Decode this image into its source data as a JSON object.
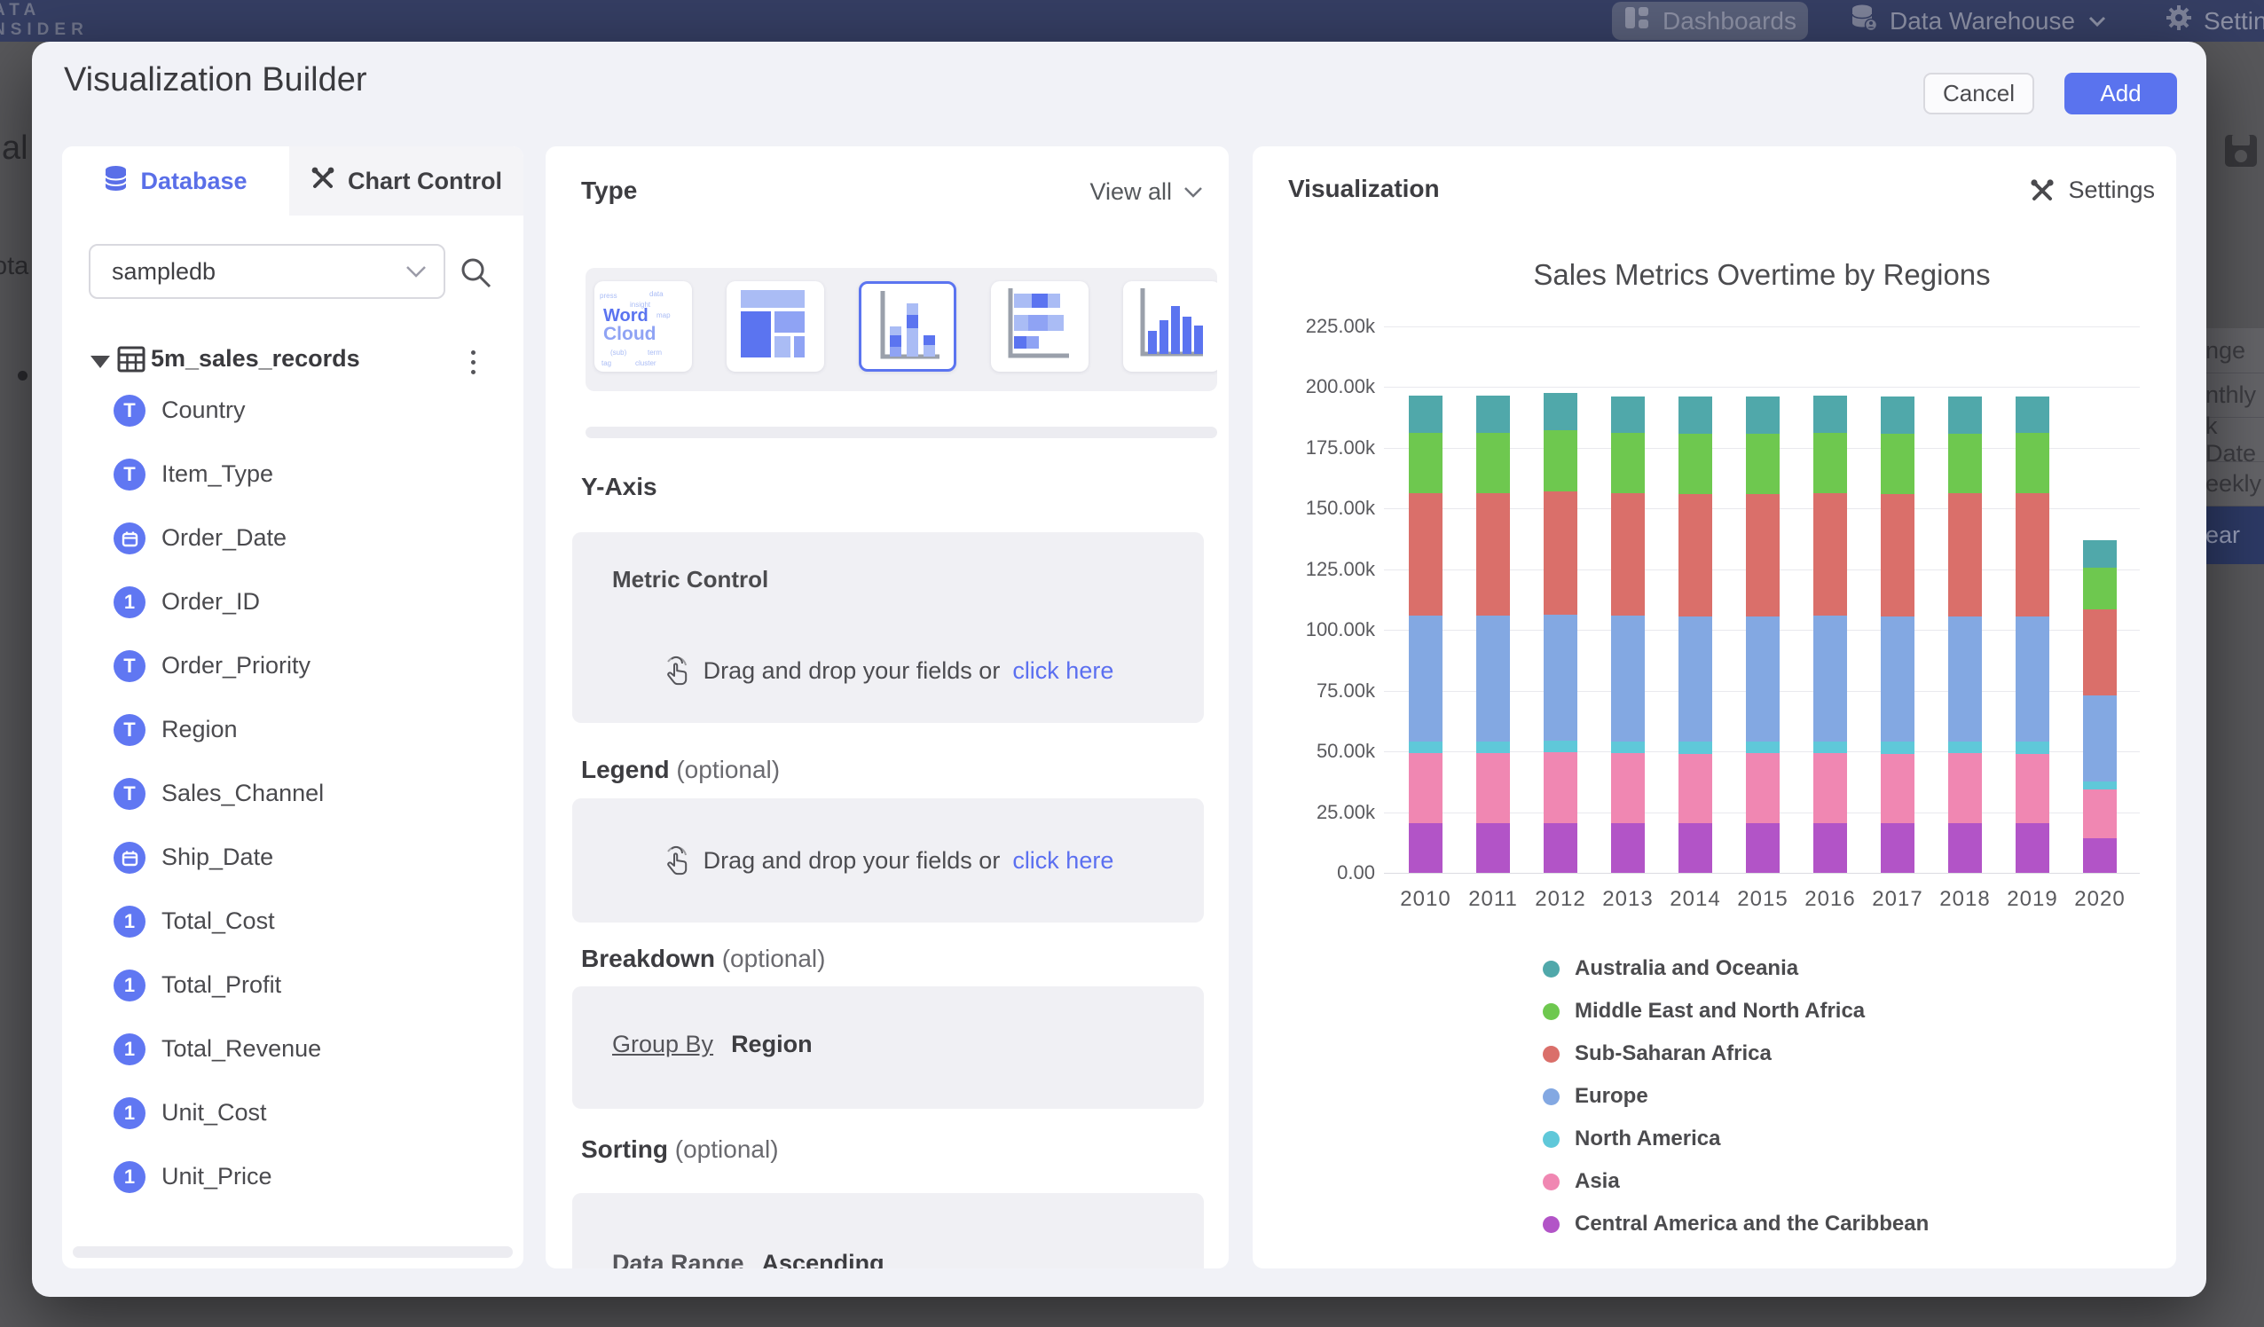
{
  "nav": {
    "logo_line1": "ATA",
    "logo_line2": "NSIDER",
    "dashboards": "Dashboards",
    "data_warehouse": "Data Warehouse",
    "settings": "Settings"
  },
  "background": {
    "left_fragment_1": "al",
    "left_fragment_2": "ota",
    "right_list": {
      "items": [
        "nge",
        "nthly",
        "k Date",
        "eekly",
        "ear"
      ],
      "selected_index": 4
    }
  },
  "modal": {
    "title": "Visualization Builder",
    "cancel": "Cancel",
    "add": "Add"
  },
  "left_panel": {
    "tabs": {
      "database": "Database",
      "chart_control": "Chart Control"
    },
    "database_select": {
      "value": "sampledb"
    },
    "table": {
      "name": "5m_sales_records",
      "fields": [
        {
          "name": "Country",
          "type": "text"
        },
        {
          "name": "Item_Type",
          "type": "text"
        },
        {
          "name": "Order_Date",
          "type": "date"
        },
        {
          "name": "Order_ID",
          "type": "number"
        },
        {
          "name": "Order_Priority",
          "type": "text"
        },
        {
          "name": "Region",
          "type": "text"
        },
        {
          "name": "Sales_Channel",
          "type": "text"
        },
        {
          "name": "Ship_Date",
          "type": "date"
        },
        {
          "name": "Total_Cost",
          "type": "number"
        },
        {
          "name": "Total_Profit",
          "type": "number"
        },
        {
          "name": "Total_Revenue",
          "type": "number"
        },
        {
          "name": "Unit_Cost",
          "type": "number"
        },
        {
          "name": "Unit_Price",
          "type": "number"
        }
      ]
    }
  },
  "middle_panel": {
    "type_heading": "Type",
    "view_all": "View all",
    "type_options": [
      {
        "kind": "word-cloud",
        "selected": false
      },
      {
        "kind": "treemap",
        "selected": false
      },
      {
        "kind": "stacked-column",
        "selected": true
      },
      {
        "kind": "stacked-bar",
        "selected": false
      },
      {
        "kind": "column",
        "selected": false
      }
    ],
    "word_cloud": {
      "word1": "Word",
      "word2": "Cloud"
    },
    "y_axis": {
      "heading": "Y-Axis",
      "card_title": "Metric Control",
      "drag_text": "Drag and drop your fields or",
      "link_text": "click here"
    },
    "legend": {
      "heading": "Legend",
      "optional": "(optional)",
      "drag_text": "Drag and drop your fields or",
      "link_text": "click here"
    },
    "breakdown": {
      "heading": "Breakdown",
      "optional": "(optional)",
      "group_by_label": "Group By",
      "group_by_value": "Region"
    },
    "sorting": {
      "heading": "Sorting",
      "optional": "(optional)",
      "value_label": "Data Range",
      "value_order": "Ascending"
    }
  },
  "right_panel": {
    "heading": "Visualization",
    "settings_label": "Settings",
    "chart_data": {
      "type": "bar",
      "stacked": true,
      "title": "Sales Metrics Overtime by Regions",
      "categories": [
        "2010",
        "2011",
        "2012",
        "2013",
        "2014",
        "2015",
        "2016",
        "2017",
        "2018",
        "2019",
        "2020"
      ],
      "values_unit": "thousands",
      "series": [
        {
          "name": "Australia and Oceania",
          "color": "#50a8aa",
          "values": [
            15.3,
            15.4,
            15.5,
            15.3,
            15.3,
            15.3,
            15.4,
            15.3,
            15.3,
            15.3,
            11.3
          ]
        },
        {
          "name": "Middle East and North Africa",
          "color": "#6ec84f",
          "values": [
            24.7,
            24.7,
            24.9,
            24.7,
            24.6,
            24.7,
            24.7,
            24.6,
            24.7,
            24.7,
            17.0
          ]
        },
        {
          "name": "Sub-Saharan Africa",
          "color": "#da6f6a",
          "values": [
            50.6,
            50.5,
            50.8,
            50.5,
            50.6,
            50.4,
            50.6,
            50.5,
            50.5,
            50.6,
            35.3
          ]
        },
        {
          "name": "Europe",
          "color": "#83a8e2",
          "values": [
            51.7,
            51.6,
            51.9,
            51.7,
            51.6,
            51.5,
            51.7,
            51.6,
            51.6,
            51.7,
            35.7
          ]
        },
        {
          "name": "North America",
          "color": "#5fc8d9",
          "values": [
            4.9,
            4.9,
            5.0,
            4.9,
            4.9,
            4.9,
            4.9,
            4.9,
            4.9,
            4.9,
            3.3
          ]
        },
        {
          "name": "Asia",
          "color": "#f087b2",
          "values": [
            28.7,
            28.8,
            28.9,
            28.7,
            28.6,
            28.7,
            28.8,
            28.7,
            28.7,
            28.6,
            20.1
          ]
        },
        {
          "name": "Central America and the Caribbean",
          "color": "#b254c7",
          "values": [
            20.5,
            20.5,
            20.6,
            20.5,
            20.4,
            20.5,
            20.5,
            20.4,
            20.5,
            20.5,
            14.1
          ]
        }
      ],
      "y_ticks": [
        "225.00k",
        "200.00k",
        "175.00k",
        "150.00k",
        "125.00k",
        "100.00k",
        "75.00k",
        "50.00k",
        "25.00k",
        "0.00"
      ],
      "ylim": [
        0,
        225
      ],
      "legend_position": "bottom-left",
      "grid": true
    }
  }
}
